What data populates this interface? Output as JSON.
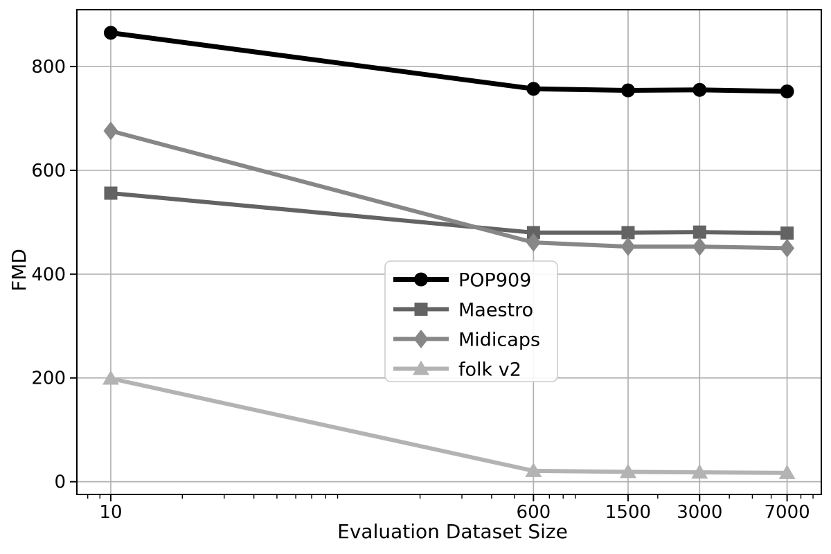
{
  "chart_data": {
    "type": "line",
    "title": "",
    "xlabel": "Evaluation Dataset Size",
    "ylabel": "FMD",
    "xscale": "log",
    "grid": true,
    "grid_color": "#b0b0b0",
    "background_color": "#ffffff",
    "spine_color": "#000000",
    "x": [
      10,
      600,
      1500,
      3000,
      7000
    ],
    "series": [
      {
        "name": "POP909",
        "marker": "circle",
        "color": "#000000",
        "line_width": 7,
        "values": [
          865,
          757,
          754,
          755,
          752
        ]
      },
      {
        "name": "Maestro",
        "marker": "square",
        "color": "#636363",
        "line_width": 6,
        "values": [
          556,
          480,
          480,
          481,
          479
        ]
      },
      {
        "name": "Midicaps",
        "marker": "diamond",
        "color": "#878787",
        "line_width": 6,
        "values": [
          676,
          461,
          453,
          453,
          450
        ]
      },
      {
        "name": "folk v2",
        "marker": "triangle",
        "color": "#b3b3b3",
        "line_width": 6,
        "values": [
          199,
          21,
          19,
          18,
          17
        ]
      }
    ],
    "axes": {
      "xlim": [
        7.2,
        9750
      ],
      "ylim": [
        -24.5,
        909.5
      ],
      "xticks": {
        "values": [
          10,
          600,
          1500,
          3000,
          7000
        ],
        "labels": [
          "10",
          "600",
          "1500",
          "3000",
          "7000"
        ]
      },
      "yticks": {
        "values": [
          0,
          200,
          400,
          600,
          800
        ],
        "labels": [
          "0",
          "200",
          "400",
          "600",
          "800"
        ]
      }
    },
    "legend": {
      "position": "center",
      "border_color": "#cccccc",
      "background_color": "#ffffff",
      "entries": [
        "POP909",
        "Maestro",
        "Midicaps",
        "folk v2"
      ]
    }
  }
}
